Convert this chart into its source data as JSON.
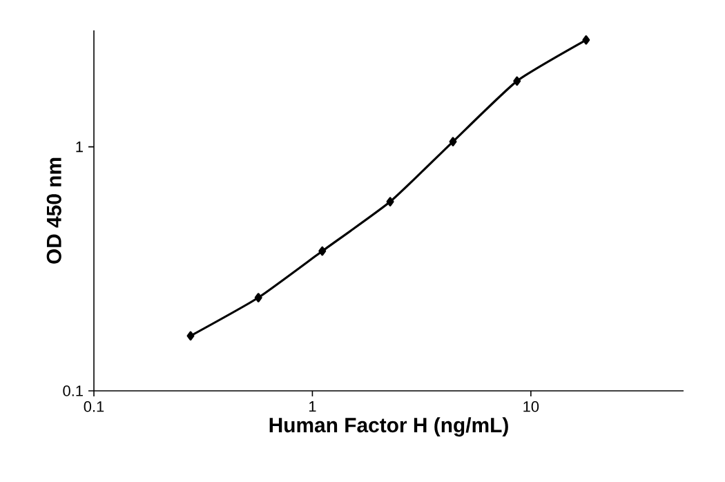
{
  "chart_data": {
    "type": "line",
    "xlabel": "Human Factor H (ng/mL)",
    "ylabel": "OD 450 nm",
    "log": "xy",
    "xlim": [
      0.1,
      50
    ],
    "ylim": [
      0.1,
      3
    ],
    "xticks": [
      0.1,
      1,
      10
    ],
    "yticks": [
      0.1,
      1
    ],
    "marker": "diamond",
    "line_style": "solid",
    "grid": false,
    "series": [
      {
        "color": "#000000",
        "x": [
          0.277,
          0.566,
          1.11,
          2.27,
          4.4,
          8.64,
          17.9
        ],
        "values": [
          0.168,
          0.241,
          0.374,
          0.596,
          1.05,
          1.86,
          2.74
        ]
      }
    ]
  }
}
